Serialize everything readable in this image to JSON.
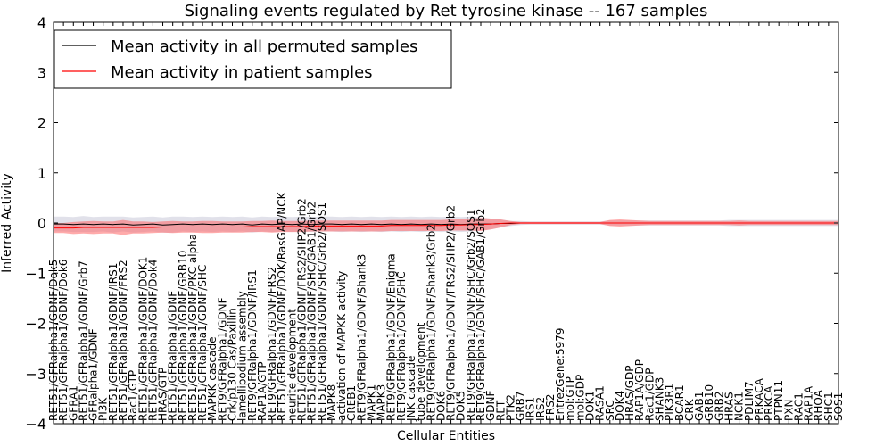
{
  "chart_data": {
    "type": "line",
    "title": "Signaling events regulated by Ret tyrosine kinase -- 167 samples",
    "xlabel": "Cellular Entities",
    "ylabel": "Inferred Activity",
    "ylim": [
      -4,
      4
    ],
    "yticks": [
      "4",
      "3",
      "2",
      "1",
      "0",
      "−1",
      "−2",
      "−3",
      "−4"
    ],
    "ytick_values": [
      4,
      3,
      2,
      1,
      0,
      -1,
      -2,
      -3,
      -4
    ],
    "grid": false,
    "legend": "top-left",
    "categories": [
      "RET51/GFRalpha1/GDNF/Dok5",
      "RET51/GFRalpha1/GDNF/Dok6",
      "GFRA1",
      "RET51/GFRalpha1/GDNF/Grb7",
      "GFRalpha1/GDNF",
      "PI3K",
      "RET51/GFRalpha1/GDNF/IRS1",
      "RET51/GFRalpha1/GDNF/FRS2",
      "Rac1/GTP",
      "RET51/GFRalpha1/GDNF/DOK1",
      "RET51/GFRalpha1/GDNF/Dok4",
      "HRAS/GTP",
      "RET51/GFRalpha1/GDNF",
      "RET51/GFRalpha1/GDNF/GRB10",
      "RET51/GFRalpha1/GDNF/PKC alpha",
      "RET51/GFRalpha1/GDNF/SHC",
      "MAPKK cascade",
      "RET9/GFRalpha1/GDNF",
      "Crk/p130 Cas/Paxillin",
      "lamellipodium assembly",
      "RET9/GFRalpha1/GDNF/IRS1",
      "RAP1A/GTP",
      "RET9/GFRalpha1/GDNF/FRS2",
      "RET51/GFRalpha1/GDNF/DOK/RasGAP/NCK",
      "neurite development",
      "RET51/GFRalpha1/GDNF/FRS2/SHP2/Grb2",
      "RET51/GFRalpha1/GDNF/SHC/GAB1/Grb2",
      "RET51/GFRalpha1/GDNF/SHC/Grb2/SOS1",
      "MAPK8",
      "activation of MAPKK activity",
      "CREB1",
      "RET9/GFRalpha1/GDNF/Shank3",
      "MAPK1",
      "MAPK3",
      "RET9/GFRalpha1/GDNF/Enigma",
      "RET9/GFRalpha1/GDNF/SHC",
      "JNK cascade",
      "tube development",
      "RET9/GFRalpha1/GDNF/Shank3/Grb2",
      "DOK6",
      "RET9/GFRalpha1/GDNF/FRS2/SHP2/Grb2",
      "DOK5",
      "RET9/GFRalpha1/GDNF/SHC/Grb2/SOS1",
      "RET9/GFRalpha1/GDNF/SHC/GAB1/Grb2",
      "GDNF",
      "RET",
      "PTK2",
      "GRB7",
      "IRS1",
      "IRS2",
      "FRS2",
      "EntrezGene:5979",
      "mol:GTP",
      "mol:GDP",
      "DOK1",
      "RASA1",
      "SRC",
      "DOK4",
      "HRAS/GDP",
      "RAP1A/GDP",
      "Rac1/GDP",
      "SHANK3",
      "PIK3R1",
      "BCAR1",
      "CRK",
      "GAB1",
      "GRB10",
      "GRB2",
      "HRAS",
      "NCK1",
      "PDLIM7",
      "PRKACA",
      "PRKCA",
      "PTPN11",
      "PXN",
      "RAC1",
      "RAP1A",
      "RHOA",
      "SHC1",
      "SOS1"
    ],
    "series": [
      {
        "name": "Mean activity in all permuted samples",
        "color": "#000000",
        "values": [
          -0.02,
          -0.02,
          -0.03,
          -0.02,
          -0.03,
          -0.02,
          -0.03,
          -0.02,
          -0.04,
          -0.03,
          -0.02,
          -0.04,
          -0.03,
          -0.02,
          -0.03,
          -0.02,
          -0.03,
          -0.02,
          -0.03,
          -0.02,
          -0.04,
          -0.02,
          -0.03,
          -0.02,
          -0.03,
          -0.02,
          -0.03,
          -0.02,
          -0.02,
          -0.03,
          -0.02,
          -0.03,
          -0.02,
          -0.03,
          -0.02,
          -0.03,
          -0.02,
          -0.03,
          -0.02,
          -0.03,
          -0.02,
          -0.03,
          -0.02,
          -0.02,
          -0.02,
          -0.01,
          -0.01,
          0.0,
          0.0,
          0.0,
          0.0,
          0.0,
          0.0,
          0.0,
          0.0,
          0.0,
          0.0,
          0.0,
          0.0,
          0.0,
          0.0,
          0.0,
          0.0,
          0.0,
          0.0,
          0.0,
          0.0,
          0.0,
          0.0,
          0.0,
          0.0,
          0.0,
          0.0,
          0.0,
          0.0,
          0.0,
          0.0,
          0.0,
          0.0,
          0.0
        ],
        "band_halfwidth": [
          0.15,
          0.15,
          0.15,
          0.16,
          0.15,
          0.15,
          0.16,
          0.15,
          0.15,
          0.15,
          0.15,
          0.15,
          0.16,
          0.15,
          0.15,
          0.15,
          0.15,
          0.15,
          0.15,
          0.15,
          0.15,
          0.15,
          0.15,
          0.15,
          0.15,
          0.15,
          0.15,
          0.15,
          0.15,
          0.15,
          0.15,
          0.15,
          0.15,
          0.15,
          0.15,
          0.15,
          0.15,
          0.15,
          0.15,
          0.15,
          0.15,
          0.15,
          0.15,
          0.13,
          0.11,
          0.08,
          0.05,
          0.04,
          0.03,
          0.03,
          0.03,
          0.03,
          0.03,
          0.03,
          0.03,
          0.03,
          0.05,
          0.05,
          0.05,
          0.05,
          0.05,
          0.05,
          0.05,
          0.05,
          0.05,
          0.05,
          0.05,
          0.05,
          0.06,
          0.06,
          0.06,
          0.06,
          0.06,
          0.06,
          0.06,
          0.06,
          0.06,
          0.06,
          0.06,
          0.06
        ]
      },
      {
        "name": "Mean activity in patient samples",
        "color": "#ff0000",
        "band_color": "#ff6666",
        "values": [
          -0.1,
          -0.1,
          -0.1,
          -0.09,
          -0.09,
          -0.09,
          -0.09,
          -0.09,
          -0.09,
          -0.09,
          -0.09,
          -0.08,
          -0.08,
          -0.08,
          -0.08,
          -0.08,
          -0.08,
          -0.08,
          -0.08,
          -0.08,
          -0.07,
          -0.07,
          -0.07,
          -0.07,
          -0.07,
          -0.07,
          -0.06,
          -0.06,
          -0.06,
          -0.06,
          -0.06,
          -0.06,
          -0.06,
          -0.06,
          -0.05,
          -0.05,
          -0.05,
          -0.05,
          -0.05,
          -0.05,
          -0.04,
          -0.04,
          -0.03,
          -0.03,
          -0.02,
          -0.01,
          0.0,
          0.0,
          0.0,
          0.0,
          0.0,
          0.0,
          0.0,
          0.0,
          0.0,
          0.0,
          0.0,
          0.0,
          0.0,
          0.0,
          0.0,
          0.0,
          0.0,
          0.0,
          0.0,
          0.0,
          0.0,
          0.0,
          0.0,
          0.0,
          0.0,
          0.0,
          0.0,
          0.0,
          0.0,
          0.0,
          0.0,
          0.0,
          0.0,
          0.0
        ],
        "band_halfwidth": [
          0.1,
          0.1,
          0.12,
          0.12,
          0.13,
          0.12,
          0.12,
          0.15,
          0.12,
          0.12,
          0.11,
          0.11,
          0.12,
          0.11,
          0.11,
          0.12,
          0.12,
          0.11,
          0.11,
          0.11,
          0.11,
          0.11,
          0.12,
          0.11,
          0.11,
          0.11,
          0.11,
          0.11,
          0.11,
          0.11,
          0.11,
          0.11,
          0.11,
          0.11,
          0.11,
          0.11,
          0.11,
          0.11,
          0.11,
          0.11,
          0.11,
          0.11,
          0.12,
          0.13,
          0.11,
          0.08,
          0.04,
          0.02,
          0.02,
          0.02,
          0.02,
          0.02,
          0.02,
          0.02,
          0.02,
          0.02,
          0.06,
          0.07,
          0.06,
          0.05,
          0.04,
          0.04,
          0.04,
          0.04,
          0.04,
          0.04,
          0.04,
          0.04,
          0.04,
          0.05,
          0.04,
          0.04,
          0.04,
          0.04,
          0.04,
          0.04,
          0.04,
          0.04,
          0.04,
          0.04
        ]
      }
    ]
  }
}
